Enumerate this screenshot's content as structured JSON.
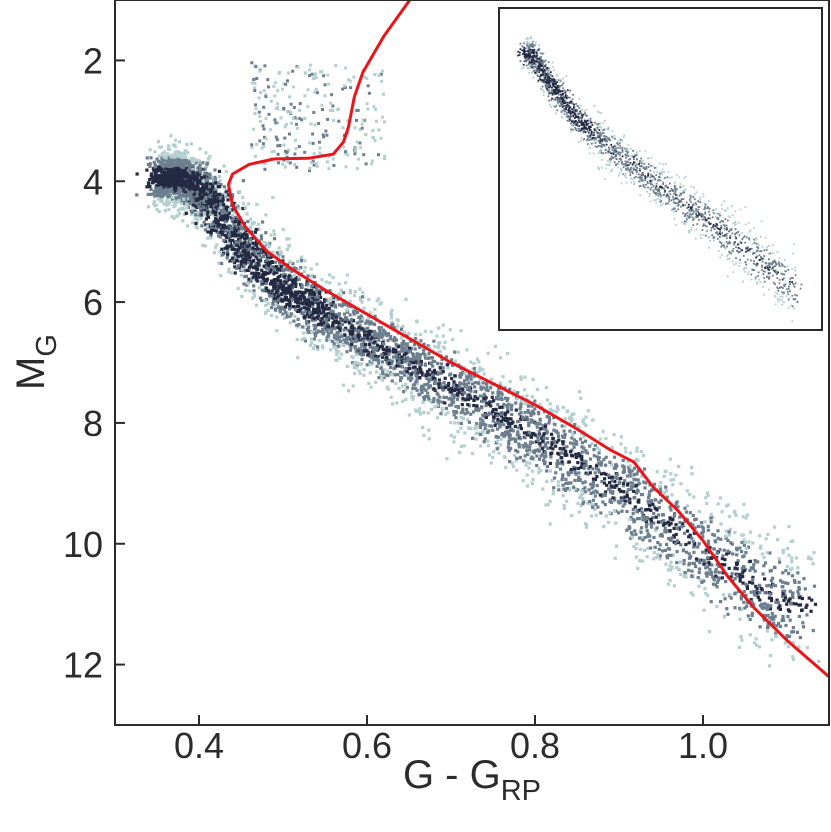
{
  "chart_data": {
    "type": "scatter",
    "title": "",
    "xlabel": {
      "main": "G - G",
      "sub": "RP"
    },
    "ylabel": {
      "main": "M",
      "sub": "G"
    },
    "xlim": [
      0.3,
      1.15
    ],
    "ylim": [
      13,
      1
    ],
    "y_inverted": true,
    "x_ticks": [
      0.4,
      0.6,
      0.8,
      1.0
    ],
    "x_tick_labels": [
      "0.4",
      "0.6",
      "0.8",
      "1.0"
    ],
    "y_ticks": [
      2,
      4,
      6,
      8,
      10,
      12
    ],
    "y_tick_labels": [
      "2",
      "4",
      "6",
      "8",
      "10",
      "12"
    ],
    "grid": false,
    "series": [
      {
        "kind": "density",
        "color_scale": [
          "#b3cfcf",
          "#6d7f8f",
          "#252a44"
        ],
        "ridge": [
          [
            0.36,
            3.9
          ],
          [
            0.38,
            3.95
          ],
          [
            0.4,
            4.1
          ],
          [
            0.42,
            4.45
          ],
          [
            0.44,
            4.9
          ],
          [
            0.47,
            5.4
          ],
          [
            0.5,
            5.75
          ],
          [
            0.55,
            6.2
          ],
          [
            0.6,
            6.6
          ],
          [
            0.65,
            7.0
          ],
          [
            0.7,
            7.4
          ],
          [
            0.75,
            7.8
          ],
          [
            0.8,
            8.2
          ],
          [
            0.85,
            8.65
          ],
          [
            0.9,
            9.1
          ],
          [
            0.95,
            9.6
          ],
          [
            1.0,
            10.1
          ],
          [
            1.05,
            10.6
          ],
          [
            1.1,
            11.0
          ]
        ]
      },
      {
        "kind": "line",
        "color": "#e8161b",
        "points": [
          [
            0.651,
            1.0
          ],
          [
            0.62,
            1.6
          ],
          [
            0.595,
            2.2
          ],
          [
            0.585,
            2.6
          ],
          [
            0.578,
            3.1
          ],
          [
            0.572,
            3.35
          ],
          [
            0.56,
            3.55
          ],
          [
            0.53,
            3.62
          ],
          [
            0.49,
            3.63
          ],
          [
            0.46,
            3.72
          ],
          [
            0.44,
            3.88
          ],
          [
            0.435,
            4.05
          ],
          [
            0.44,
            4.4
          ],
          [
            0.455,
            4.75
          ],
          [
            0.48,
            5.15
          ],
          [
            0.51,
            5.45
          ],
          [
            0.55,
            5.8
          ],
          [
            0.6,
            6.2
          ],
          [
            0.65,
            6.6
          ],
          [
            0.7,
            7.0
          ],
          [
            0.75,
            7.35
          ],
          [
            0.8,
            7.7
          ],
          [
            0.85,
            8.1
          ],
          [
            0.89,
            8.45
          ],
          [
            0.918,
            8.65
          ],
          [
            0.94,
            9.05
          ],
          [
            0.97,
            9.45
          ],
          [
            1.0,
            9.95
          ],
          [
            1.03,
            10.55
          ],
          [
            1.06,
            11.05
          ],
          [
            1.1,
            11.6
          ],
          [
            1.15,
            12.2
          ]
        ]
      }
    ],
    "inset": {
      "type": "scatter",
      "kind": "density",
      "ridge": [
        [
          0.36,
          2.4
        ],
        [
          0.4,
          2.9
        ],
        [
          0.45,
          3.5
        ],
        [
          0.5,
          4.1
        ],
        [
          0.55,
          4.5
        ],
        [
          0.6,
          4.9
        ],
        [
          0.65,
          5.25
        ],
        [
          0.7,
          5.6
        ],
        [
          0.75,
          5.95
        ],
        [
          0.8,
          6.3
        ],
        [
          0.85,
          6.6
        ],
        [
          0.9,
          6.95
        ],
        [
          0.95,
          7.3
        ],
        [
          1.0,
          7.7
        ],
        [
          1.05,
          8.0
        ],
        [
          1.1,
          8.4
        ]
      ]
    }
  }
}
